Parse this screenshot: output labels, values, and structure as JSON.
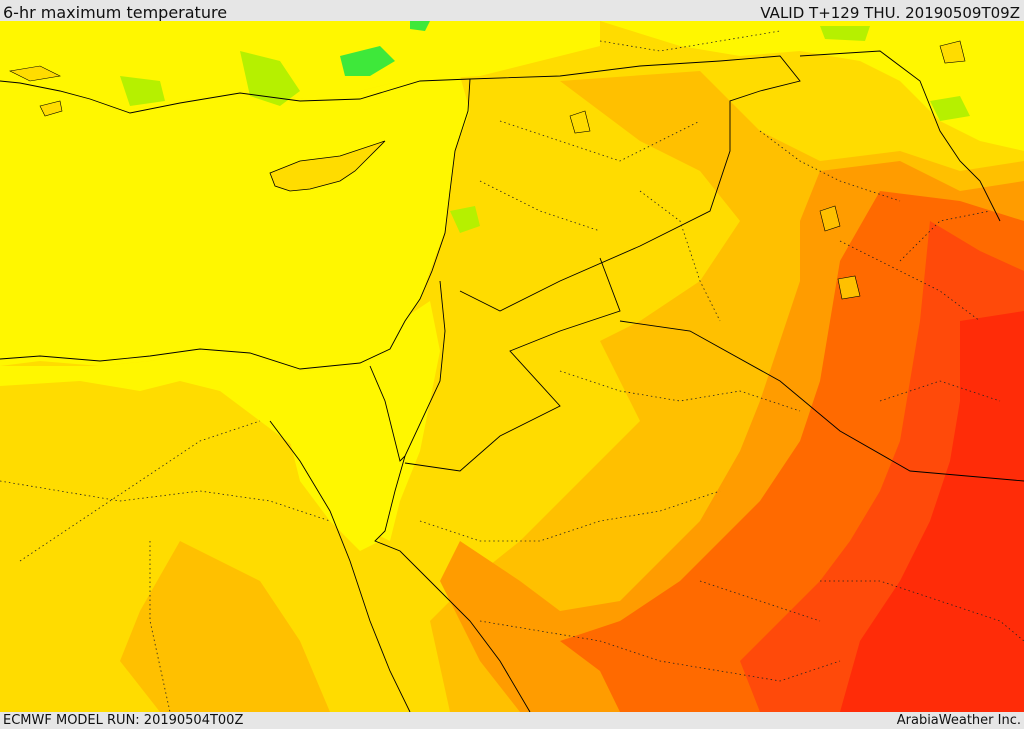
{
  "header": {
    "title": "6-hr maximum temperature",
    "valid": "VALID T+129 THU. 20190509T09Z"
  },
  "footer": {
    "model_run": "ECMWF MODEL RUN: 20190504T00Z",
    "credit": "ArabiaWeather Inc."
  },
  "legend_colors": {
    "green": "#3ee83a",
    "light_green": "#b6f000",
    "yellow": "#fff700",
    "gold": "#ffdc00",
    "light_orange": "#ffc000",
    "orange": "#ff9c00",
    "dark_orange": "#ff6a00",
    "red_orange": "#ff4a0a",
    "red": "#ff2c08"
  }
}
